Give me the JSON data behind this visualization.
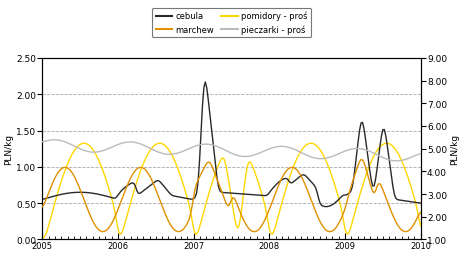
{
  "ylabel_left": "PLN/kg",
  "ylabel_right": "PLN/kg",
  "ylim_left": [
    0.0,
    2.5
  ],
  "ylim_right": [
    1.0,
    9.0
  ],
  "yticks_left": [
    0.0,
    0.5,
    1.0,
    1.5,
    2.0,
    2.5
  ],
  "yticks_right": [
    1.0,
    2.0,
    3.0,
    4.0,
    5.0,
    6.0,
    7.0,
    8.0,
    9.0
  ],
  "background_color": "#ffffff",
  "grid_color": "#aaaaaa",
  "legend_labels": [
    "cebula",
    "marchew",
    "pomidory - proś",
    "pieczarki - proś"
  ],
  "line_colors": {
    "cebula": "#2a2a2a",
    "marchew": "#e09000",
    "pomidory": "#ffd700",
    "pieczarki": "#bbbbbb"
  },
  "x_start": 2005.0,
  "x_end": 2010.0,
  "x_ticks_years": [
    2005,
    2006,
    2007,
    2008,
    2009,
    2010
  ],
  "weeks_per_year": 52
}
